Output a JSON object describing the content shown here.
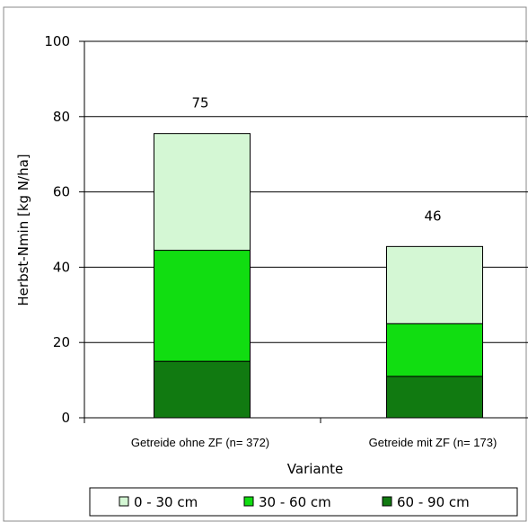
{
  "chart_data": {
    "type": "bar",
    "stacked": true,
    "title": "",
    "xlabel": "Variante",
    "ylabel": "Herbst-Nmin [kg N/ha]",
    "ylim": [
      0,
      100
    ],
    "yticks": [
      "0",
      "20",
      "40",
      "60",
      "80",
      "100"
    ],
    "grid": true,
    "legend_position": "bottom",
    "categories": [
      "Getreide ohne ZF (n= 372)",
      "Getreide mit ZF (n= 173)"
    ],
    "totals": [
      "75",
      "46"
    ],
    "series": [
      {
        "name": "60 - 90 cm",
        "values": [
          15,
          11
        ],
        "color": "#117a11"
      },
      {
        "name": "30 - 60 cm",
        "values": [
          29.5,
          14
        ],
        "color": "#11dd11"
      },
      {
        "name": "0 - 30 cm",
        "values": [
          31,
          20.5
        ],
        "color": "#d4f7d4"
      }
    ],
    "legend_order": [
      "0 - 30 cm",
      "30 - 60 cm",
      "60 - 90 cm"
    ]
  }
}
